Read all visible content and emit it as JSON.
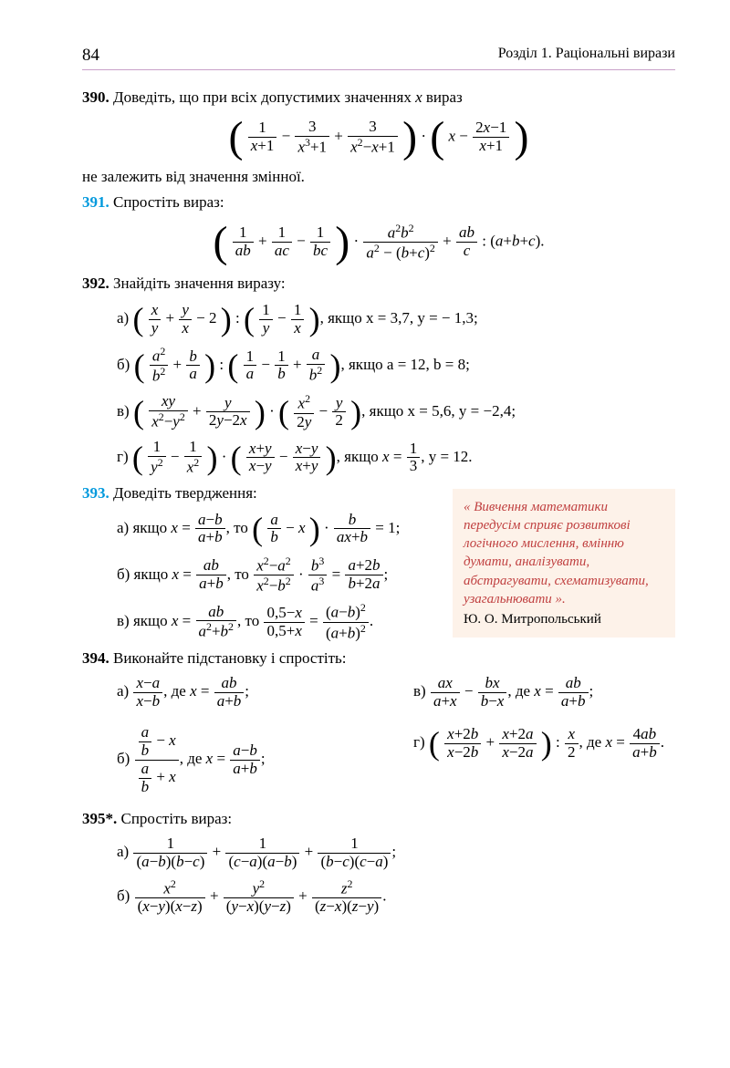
{
  "page_number": "84",
  "chapter_title": "Розділ 1. Раціональні вирази",
  "ex390": {
    "num": "390.",
    "text_before": "Доведіть, що при всіх допустимих значеннях ",
    "var": "x",
    "text_after": " вираз",
    "text_end": "не залежить від значення змінної."
  },
  "ex391": {
    "num": "391.",
    "text": "Спростіть вираз:"
  },
  "ex392": {
    "num": "392.",
    "text": "Знайдіть значення виразу:",
    "a_cond": ",  якщо  x = 3,7,  y = − 1,3;",
    "b_cond": ",  якщо  a = 12,  b = 8;",
    "c_cond": ",  якщо  x = 5,6,  y = −2,4;",
    "d_cond": ",  якщо  ",
    "d_cond2": ",  y = 12."
  },
  "ex393": {
    "num": "393.",
    "text": "Доведіть твердження:",
    "a": "а) якщо  ",
    "b": "б) якщо  ",
    "c": "в) якщо  "
  },
  "quote": {
    "text": "« Вивчення математики передусім сприяє розвиткові логічного мислення, вмінню думати, аналізувати, абстрагувати, схематизувати, узагальнювати ».",
    "author": "Ю. О. Митропольський"
  },
  "ex394": {
    "num": "394.",
    "text": "Виконайте підстановку і спростіть:",
    "de": ",  де  "
  },
  "ex395": {
    "num": "395*.",
    "text": "Спростіть вираз:"
  }
}
